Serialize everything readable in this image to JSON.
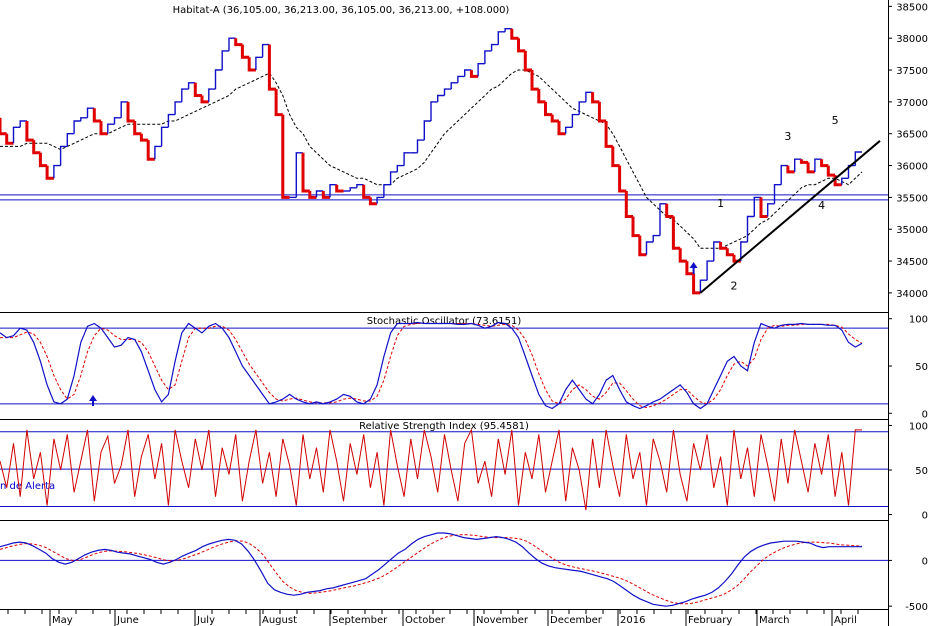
{
  "chart_data": [
    {
      "type": "line",
      "panel": "price",
      "title": "Habitat-A (36,105.00, 36,213.00, 36,105.00, 36,213.00, +108.000)",
      "style": "step line (close), red on down moves, blue on up moves, with dashed black moving average",
      "x_labels": [
        "May",
        "June",
        "July",
        "August",
        "September",
        "October",
        "November",
        "December",
        "2016",
        "February",
        "March",
        "April"
      ],
      "ylim": [
        33700,
        38600
      ],
      "y_ticks": [
        "38500",
        "38000",
        "37500",
        "37000",
        "36500",
        "36000",
        "35500",
        "35000",
        "34500",
        "34000"
      ],
      "series": [
        {
          "values": [
            36750,
            36500,
            36350,
            36600,
            36700,
            36400,
            36200,
            36000,
            35800,
            36000,
            36300,
            36500,
            36700,
            36750,
            36900,
            36700,
            36500,
            36650,
            36750,
            37000,
            36700,
            36500,
            36400,
            36100,
            36300,
            36600,
            36800,
            37000,
            37200,
            37300,
            37100,
            37000,
            37200,
            37500,
            37800,
            38000,
            37900,
            37700,
            37500,
            37700,
            37900,
            37200,
            36800,
            35500,
            35500,
            36200,
            35600,
            35500,
            35600,
            35500,
            35700,
            35600,
            35600,
            35650,
            35700,
            35500,
            35400,
            35500,
            35700,
            35900,
            36000,
            36200,
            36200,
            36400,
            36700,
            37000,
            37100,
            37200,
            37300,
            37400,
            37500,
            37400,
            37600,
            37800,
            37900,
            38100,
            38150,
            38000,
            37800,
            37500,
            37200,
            37000,
            36800,
            36700,
            36500,
            36600,
            36800,
            37000,
            37150,
            37000,
            36700,
            36300,
            36000,
            35600,
            35200,
            34900,
            34600,
            34800,
            34900,
            35400,
            35200,
            34700,
            34500,
            34300,
            34000,
            34200,
            34500,
            34800,
            34700,
            34600,
            34500,
            34800,
            35200,
            35500,
            35200,
            35400,
            35700,
            36000,
            35900,
            36100,
            36050,
            35900,
            36100,
            36000,
            35850,
            35700,
            35800,
            36000,
            36213
          ]
        },
        {
          "name": "",
          "values": [
            36300,
            36300,
            36300,
            36300,
            36350,
            36350,
            36350,
            36350,
            36300,
            36250,
            36300,
            36350,
            36400,
            36450,
            36500,
            36500,
            36500,
            36550,
            36600,
            36650,
            36650,
            36650,
            36650,
            36650,
            36650,
            36700,
            36700,
            36750,
            36800,
            36850,
            36900,
            36950,
            37000,
            37050,
            37100,
            37200,
            37250,
            37300,
            37350,
            37400,
            37450,
            37300,
            37100,
            36800,
            36600,
            36500,
            36300,
            36200,
            36100,
            36000,
            35950,
            35900,
            35850,
            35800,
            35800,
            35750,
            35700,
            35700,
            35700,
            35800,
            35850,
            35900,
            35950,
            36050,
            36200,
            36350,
            36500,
            36600,
            36700,
            36800,
            36900,
            37000,
            37100,
            37200,
            37250,
            37350,
            37450,
            37500,
            37500,
            37450,
            37400,
            37300,
            37200,
            37100,
            37000,
            36900,
            36850,
            36800,
            36750,
            36700,
            36650,
            36500,
            36300,
            36100,
            35900,
            35700,
            35500,
            35400,
            35300,
            35200,
            35150,
            35050,
            34950,
            34850,
            34700,
            34700,
            34700,
            34700,
            34750,
            34800,
            34850,
            34900,
            35000,
            35100,
            35150,
            35250,
            35350,
            35450,
            35550,
            35650,
            35700,
            35700,
            35750,
            35800,
            35800,
            35750,
            35700,
            35800,
            35900
          ]
        }
      ],
      "horizontal_lines": [
        35540,
        35460
      ],
      "trendline": [
        [
          104,
          34000
        ],
        [
          128,
          36200
        ]
      ],
      "annotations": [
        "1",
        "2",
        "3",
        "4",
        "5"
      ]
    },
    {
      "type": "line",
      "panel": "stochastic",
      "title": "Stochastic Oscillator (73.6151)",
      "ylim": [
        -5,
        105
      ],
      "y_ticks": [
        "100",
        "50",
        "0"
      ],
      "reference_lines": [
        90,
        10
      ],
      "series": [
        {
          "values": [
            85,
            80,
            82,
            90,
            88,
            75,
            55,
            30,
            12,
            10,
            15,
            40,
            75,
            92,
            95,
            90,
            80,
            70,
            72,
            80,
            78,
            65,
            45,
            25,
            12,
            20,
            55,
            85,
            95,
            90,
            85,
            92,
            95,
            90,
            80,
            65,
            50,
            40,
            30,
            20,
            10,
            12,
            15,
            20,
            15,
            12,
            10,
            12,
            10,
            12,
            15,
            20,
            18,
            12,
            10,
            15,
            30,
            60,
            85,
            95,
            95,
            95,
            96,
            95,
            95,
            95,
            95,
            95,
            94,
            94,
            95,
            93,
            90,
            92,
            96,
            95,
            90,
            80,
            60,
            40,
            20,
            8,
            5,
            10,
            25,
            35,
            25,
            15,
            10,
            20,
            35,
            40,
            25,
            12,
            8,
            5,
            8,
            12,
            15,
            20,
            25,
            30,
            22,
            10,
            5,
            10,
            25,
            40,
            55,
            60,
            50,
            45,
            75,
            95,
            92,
            90,
            93,
            94,
            94,
            95,
            94,
            94,
            94,
            93,
            93,
            88,
            75,
            70,
            74
          ]
        },
        {
          "name": "",
          "values": [
            80,
            80,
            80,
            83,
            86,
            84,
            75,
            60,
            40,
            25,
            15,
            20,
            40,
            65,
            82,
            90,
            88,
            82,
            78,
            78,
            78,
            75,
            65,
            50,
            35,
            25,
            30,
            55,
            80,
            90,
            90,
            90,
            92,
            92,
            88,
            78,
            65,
            52,
            42,
            32,
            22,
            15,
            13,
            15,
            16,
            14,
            12,
            11,
            11,
            11,
            12,
            15,
            16,
            15,
            13,
            13,
            18,
            35,
            60,
            82,
            92,
            94,
            95,
            95,
            95,
            95,
            95,
            95,
            95,
            95,
            95,
            94,
            93,
            92,
            93,
            94,
            93,
            88,
            78,
            62,
            42,
            25,
            13,
            10,
            15,
            25,
            30,
            25,
            18,
            15,
            22,
            32,
            32,
            24,
            15,
            8,
            6,
            8,
            11,
            15,
            20,
            25,
            25,
            18,
            12,
            10,
            15,
            25,
            40,
            52,
            55,
            50,
            58,
            78,
            90,
            93,
            92,
            93,
            93,
            94,
            94,
            94,
            94,
            94,
            93,
            91,
            84,
            78,
            74
          ]
        }
      ],
      "markers": [
        "up-arrow"
      ]
    },
    {
      "type": "line",
      "panel": "rsi",
      "title": "Relative Strength Index (95.4581)",
      "ylim": [
        -5,
        105
      ],
      "y_ticks": [
        "100",
        "50",
        "0"
      ],
      "reference_lines": [
        93,
        51,
        9
      ],
      "side_label": "n de Alerta",
      "series": [
        {
          "values": [
            60,
            30,
            80,
            20,
            95,
            40,
            70,
            10,
            85,
            50,
            90,
            25,
            60,
            95,
            15,
            70,
            88,
            35,
            55,
            95,
            20,
            65,
            90,
            40,
            80,
            10,
            95,
            60,
            30,
            85,
            50,
            95,
            20,
            75,
            45,
            90,
            15,
            60,
            95,
            35,
            70,
            20,
            85,
            55,
            10,
            90,
            40,
            75,
            25,
            95,
            60,
            15,
            80,
            45,
            90,
            30,
            70,
            10,
            95,
            55,
            20,
            85,
            40,
            95,
            65,
            25,
            90,
            50,
            15,
            80,
            95,
            35,
            60,
            20,
            85,
            45,
            95,
            10,
            70,
            40,
            90,
            25,
            60,
            95,
            15,
            75,
            50,
            5,
            85,
            30,
            95,
            55,
            20,
            90,
            40,
            70,
            10,
            85,
            60,
            25,
            95,
            45,
            15,
            80,
            50,
            90,
            30,
            65,
            10,
            95,
            40,
            75,
            20,
            90,
            55,
            15,
            85,
            35,
            95,
            60,
            25,
            80,
            45,
            90,
            20,
            70,
            10,
            95,
            95
          ]
        }
      ]
    },
    {
      "type": "line",
      "panel": "momentum",
      "ylim": [
        -520,
        420
      ],
      "y_ticks": [
        "0",
        "-500"
      ],
      "reference_lines": [
        0
      ],
      "series": [
        {
          "values": [
            150,
            170,
            190,
            200,
            190,
            160,
            120,
            80,
            20,
            -20,
            -40,
            -20,
            20,
            60,
            90,
            110,
            120,
            110,
            90,
            80,
            70,
            50,
            30,
            10,
            -20,
            -40,
            -20,
            10,
            50,
            80,
            110,
            150,
            180,
            200,
            220,
            230,
            220,
            180,
            100,
            0,
            -120,
            -250,
            -320,
            -350,
            -370,
            -380,
            -370,
            -350,
            -340,
            -330,
            -310,
            -300,
            -280,
            -260,
            -240,
            -220,
            -200,
            -150,
            -100,
            -40,
            20,
            80,
            120,
            180,
            230,
            260,
            280,
            300,
            300,
            290,
            270,
            250,
            240,
            230,
            240,
            250,
            260,
            250,
            230,
            200,
            150,
            80,
            20,
            -30,
            -60,
            -80,
            -90,
            -100,
            -110,
            -120,
            -140,
            -160,
            -180,
            -200,
            -230,
            -280,
            -330,
            -380,
            -420,
            -450,
            -480,
            -490,
            -500,
            -490,
            -470,
            -450,
            -420,
            -400,
            -380,
            -350,
            -300,
            -230,
            -150,
            -50,
            40,
            100,
            140,
            170,
            190,
            200,
            210,
            210,
            210,
            200,
            190,
            160,
            140,
            150,
            150,
            150,
            150,
            150,
            150
          ]
        },
        {
          "name": "",
          "values": [
            120,
            140,
            160,
            175,
            185,
            180,
            165,
            140,
            100,
            60,
            20,
            0,
            5,
            30,
            60,
            85,
            100,
            105,
            100,
            95,
            85,
            75,
            60,
            45,
            25,
            5,
            -5,
            0,
            20,
            45,
            70,
            100,
            130,
            160,
            185,
            205,
            215,
            210,
            180,
            130,
            60,
            -40,
            -140,
            -230,
            -290,
            -330,
            -350,
            -360,
            -355,
            -345,
            -335,
            -320,
            -305,
            -290,
            -275,
            -255,
            -235,
            -210,
            -180,
            -140,
            -90,
            -40,
            10,
            60,
            110,
            160,
            200,
            235,
            260,
            275,
            280,
            280,
            275,
            265,
            255,
            250,
            250,
            250,
            245,
            235,
            210,
            170,
            120,
            70,
            20,
            -20,
            -50,
            -70,
            -85,
            -100,
            -115,
            -130,
            -150,
            -170,
            -190,
            -215,
            -250,
            -290,
            -330,
            -370,
            -400,
            -430,
            -455,
            -470,
            -475,
            -470,
            -455,
            -435,
            -415,
            -395,
            -370,
            -330,
            -280,
            -210,
            -130,
            -60,
            10,
            60,
            100,
            135,
            160,
            180,
            195,
            200,
            200,
            195,
            190,
            180,
            170,
            165,
            160,
            155
          ]
        }
      ]
    }
  ]
}
